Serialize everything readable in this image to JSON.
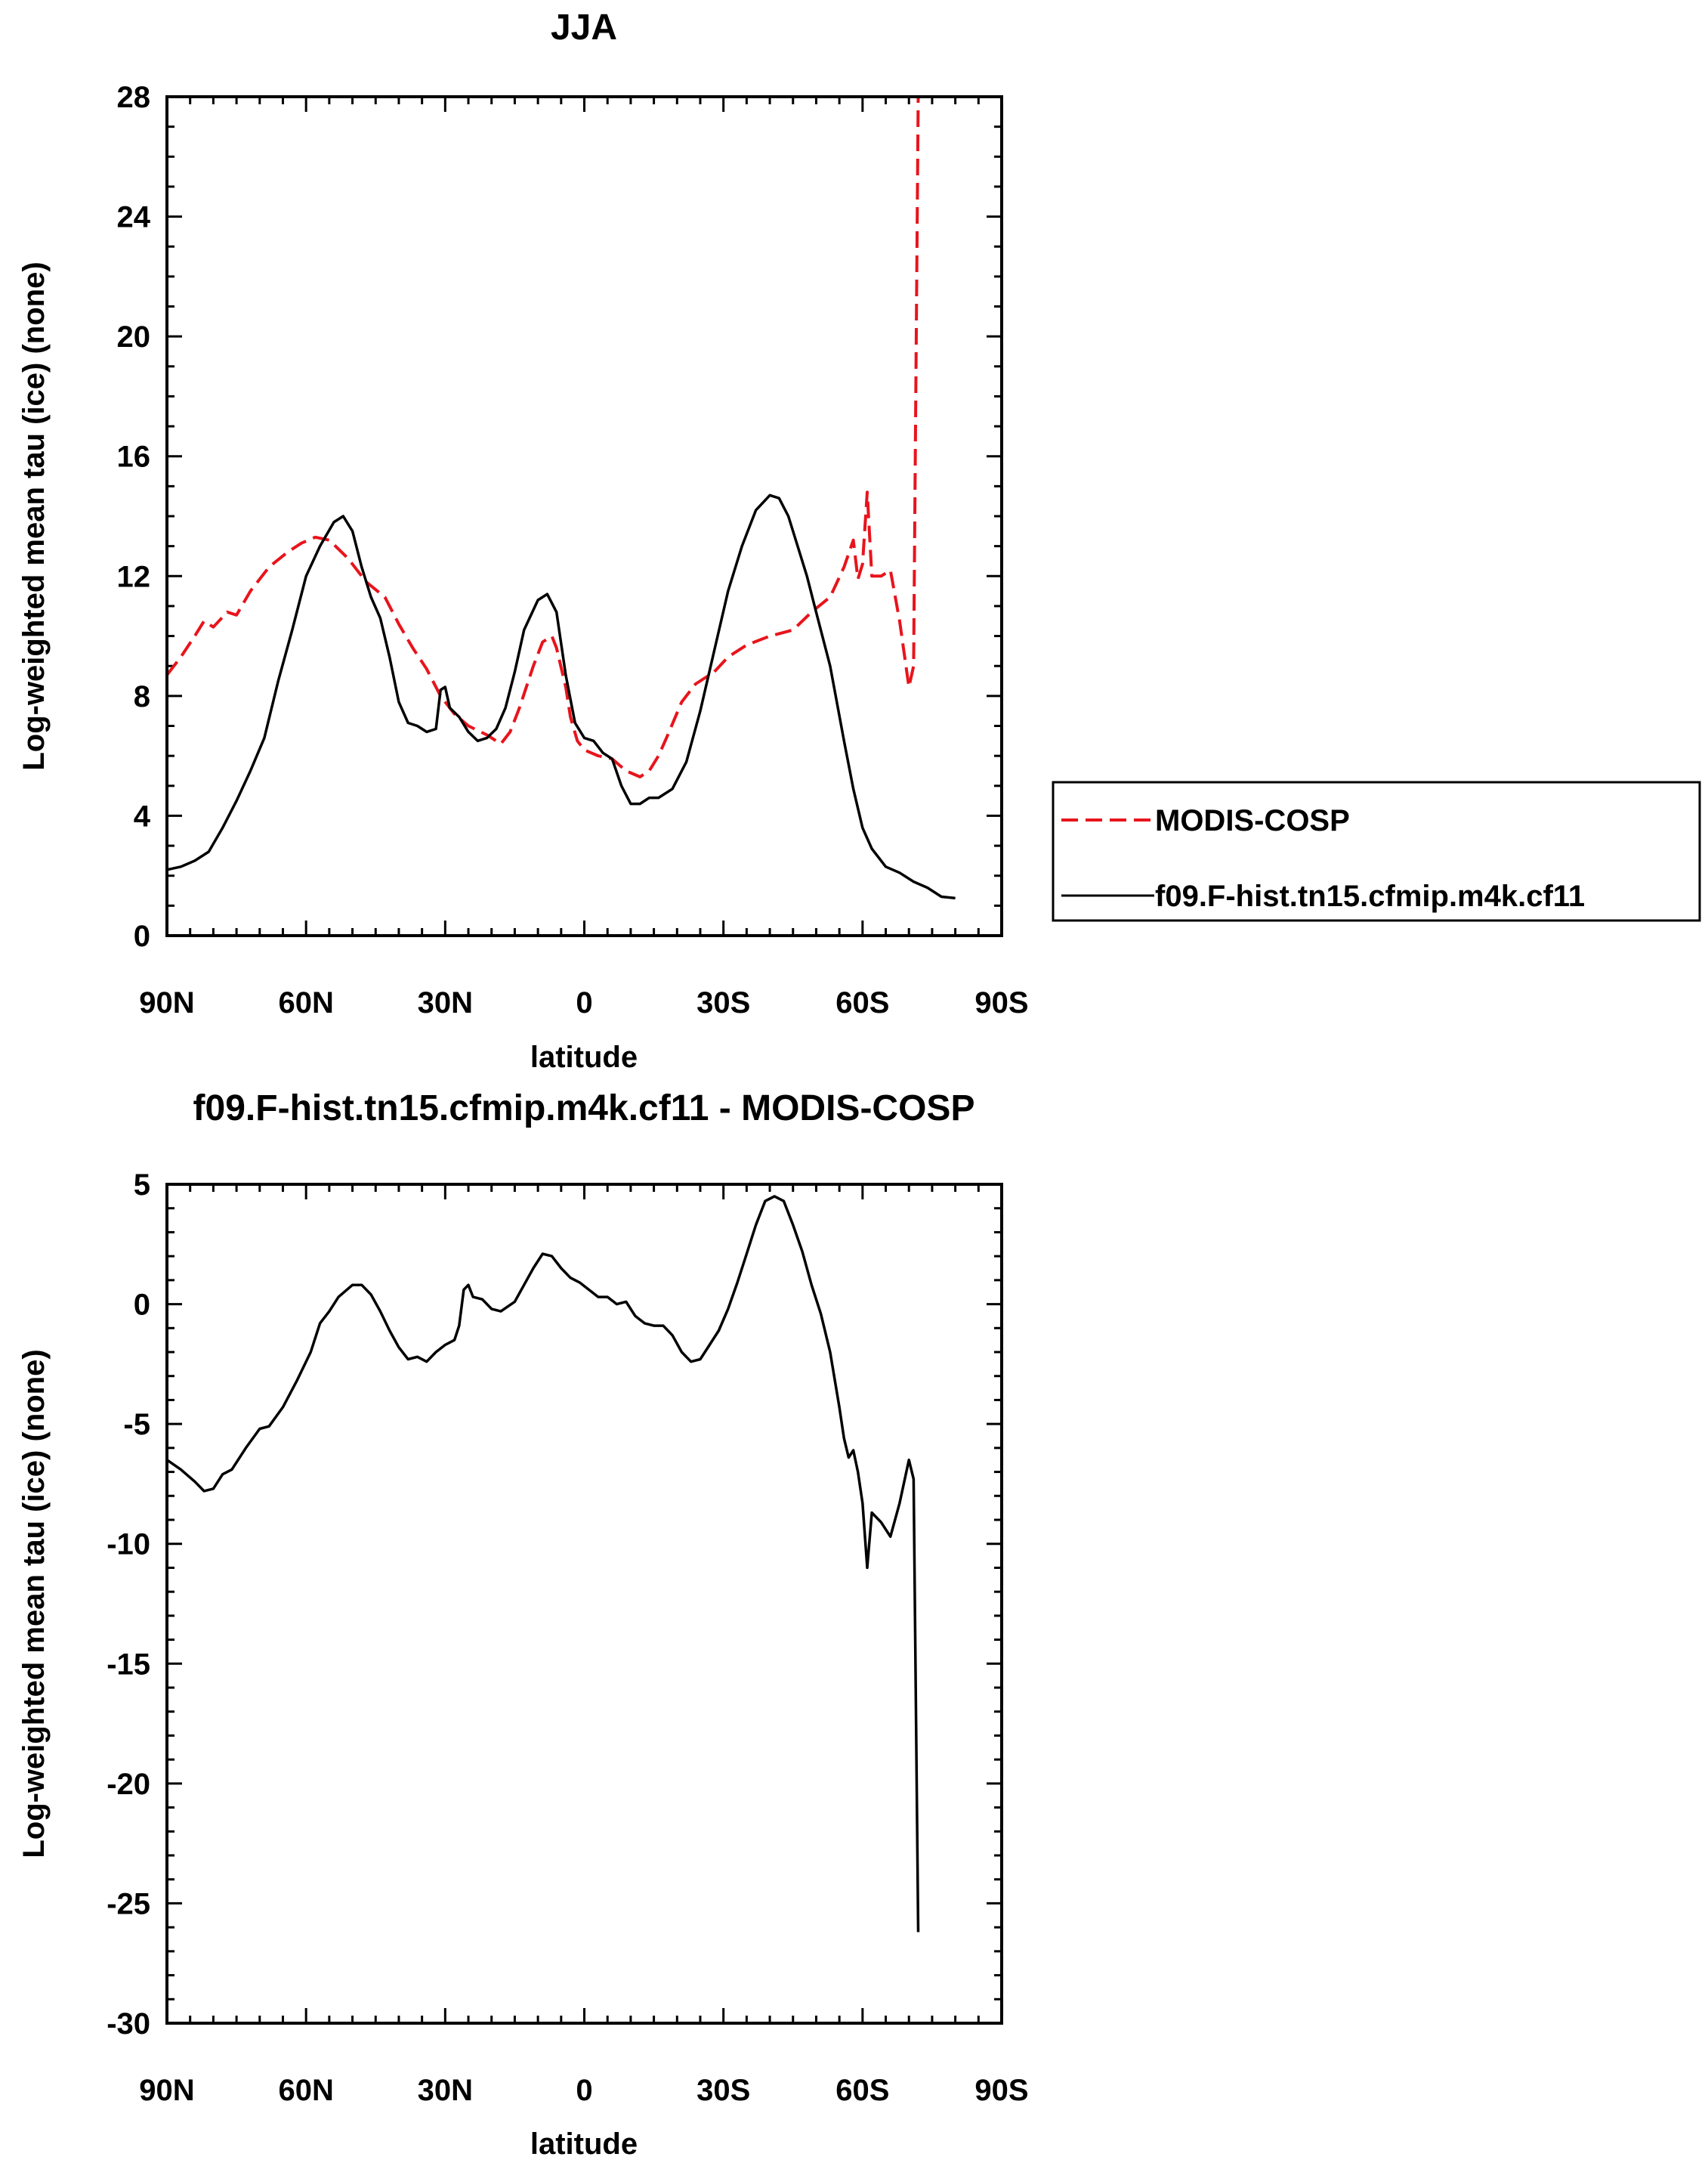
{
  "chart_data": [
    {
      "type": "line",
      "title": "JJA",
      "xlabel": "latitude",
      "ylabel": "Log-weighted mean tau (ice) (none)",
      "xlim": [
        90,
        -90
      ],
      "ylim": [
        0,
        28
      ],
      "xticks": [
        {
          "value": 90,
          "label": "90N"
        },
        {
          "value": 60,
          "label": "60N"
        },
        {
          "value": 30,
          "label": "30N"
        },
        {
          "value": 0,
          "label": "0"
        },
        {
          "value": -30,
          "label": "30S"
        },
        {
          "value": -60,
          "label": "60S"
        },
        {
          "value": -90,
          "label": "90S"
        }
      ],
      "yticks": [
        0,
        4,
        8,
        12,
        16,
        20,
        24,
        28
      ],
      "legend": "right",
      "series": [
        {
          "name": "MODIS-COSP",
          "color": "#e8141c",
          "dash": "dashed",
          "points": [
            [
              90,
              8.7
            ],
            [
              87,
              9.3
            ],
            [
              84,
              10.0
            ],
            [
              82,
              10.5
            ],
            [
              80,
              10.3
            ],
            [
              77,
              10.8
            ],
            [
              75,
              10.7
            ],
            [
              72,
              11.5
            ],
            [
              68,
              12.3
            ],
            [
              64,
              12.8
            ],
            [
              61,
              13.1
            ],
            [
              58,
              13.3
            ],
            [
              55,
              13.2
            ],
            [
              51,
              12.6
            ],
            [
              47,
              11.8
            ],
            [
              43,
              11.3
            ],
            [
              40,
              10.4
            ],
            [
              37,
              9.6
            ],
            [
              34,
              8.9
            ],
            [
              31,
              8.0
            ],
            [
              28,
              7.4
            ],
            [
              25,
              7.0
            ],
            [
              21,
              6.7
            ],
            [
              18,
              6.4
            ],
            [
              16,
              6.8
            ],
            [
              14,
              7.6
            ],
            [
              11,
              9.0
            ],
            [
              9,
              9.8
            ],
            [
              7,
              10.0
            ],
            [
              6,
              9.6
            ],
            [
              4,
              8.3
            ],
            [
              3,
              7.3
            ],
            [
              1.5,
              6.5
            ],
            [
              0,
              6.2
            ],
            [
              -3,
              6.0
            ],
            [
              -6,
              5.9
            ],
            [
              -9,
              5.5
            ],
            [
              -12,
              5.3
            ],
            [
              -14,
              5.5
            ],
            [
              -16,
              6.0
            ],
            [
              -18,
              6.7
            ],
            [
              -21,
              7.8
            ],
            [
              -24,
              8.4
            ],
            [
              -28,
              8.8
            ],
            [
              -31,
              9.3
            ],
            [
              -35,
              9.7
            ],
            [
              -40,
              10.0
            ],
            [
              -45,
              10.2
            ],
            [
              -49,
              10.8
            ],
            [
              -53,
              11.3
            ],
            [
              -56,
              12.3
            ],
            [
              -58,
              13.2
            ],
            [
              -59,
              11.9
            ],
            [
              -60,
              12.4
            ],
            [
              -61,
              14.8
            ],
            [
              -62,
              12.0
            ],
            [
              -64,
              12.0
            ],
            [
              -66,
              12.2
            ],
            [
              -68,
              10.5
            ],
            [
              -70,
              8.3
            ],
            [
              -71,
              9.0
            ],
            [
              -72,
              28
            ]
          ]
        },
        {
          "name": "f09.F-hist.tn15.cfmip.m4k.cf11",
          "color": "#000000",
          "dash": "solid",
          "points": [
            [
              90,
              2.2
            ],
            [
              87,
              2.3
            ],
            [
              84,
              2.5
            ],
            [
              81,
              2.8
            ],
            [
              78,
              3.6
            ],
            [
              75,
              4.5
            ],
            [
              72,
              5.5
            ],
            [
              69,
              6.6
            ],
            [
              66,
              8.5
            ],
            [
              63,
              10.2
            ],
            [
              60,
              12.0
            ],
            [
              57,
              13.0
            ],
            [
              54,
              13.8
            ],
            [
              52,
              14.0
            ],
            [
              50,
              13.5
            ],
            [
              48,
              12.3
            ],
            [
              46,
              11.3
            ],
            [
              44,
              10.6
            ],
            [
              42,
              9.3
            ],
            [
              40,
              7.8
            ],
            [
              38,
              7.1
            ],
            [
              36,
              7.0
            ],
            [
              34,
              6.8
            ],
            [
              32,
              6.9
            ],
            [
              31,
              8.2
            ],
            [
              30,
              8.3
            ],
            [
              29,
              7.6
            ],
            [
              27,
              7.3
            ],
            [
              25,
              6.8
            ],
            [
              23,
              6.5
            ],
            [
              21,
              6.6
            ],
            [
              19,
              6.9
            ],
            [
              17,
              7.6
            ],
            [
              15,
              8.8
            ],
            [
              13,
              10.2
            ],
            [
              10,
              11.2
            ],
            [
              8,
              11.4
            ],
            [
              6,
              10.8
            ],
            [
              4,
              8.7
            ],
            [
              2,
              7.1
            ],
            [
              0,
              6.6
            ],
            [
              -2,
              6.5
            ],
            [
              -4,
              6.1
            ],
            [
              -6,
              5.9
            ],
            [
              -8,
              5.0
            ],
            [
              -10,
              4.4
            ],
            [
              -12,
              4.4
            ],
            [
              -14,
              4.6
            ],
            [
              -16,
              4.6
            ],
            [
              -19,
              4.9
            ],
            [
              -22,
              5.8
            ],
            [
              -25,
              7.5
            ],
            [
              -28,
              9.5
            ],
            [
              -31,
              11.5
            ],
            [
              -34,
              13.0
            ],
            [
              -37,
              14.2
            ],
            [
              -40,
              14.7
            ],
            [
              -42,
              14.6
            ],
            [
              -44,
              14.0
            ],
            [
              -46,
              13.0
            ],
            [
              -48,
              12.0
            ],
            [
              -50,
              10.8
            ],
            [
              -53,
              9.0
            ],
            [
              -56,
              6.5
            ],
            [
              -58,
              4.9
            ],
            [
              -60,
              3.6
            ],
            [
              -62,
              2.9
            ],
            [
              -65,
              2.3
            ],
            [
              -68,
              2.1
            ],
            [
              -71,
              1.8
            ],
            [
              -74,
              1.6
            ],
            [
              -77,
              1.3
            ],
            [
              -80,
              1.25
            ]
          ]
        }
      ]
    },
    {
      "type": "line",
      "title": "f09.F-hist.tn15.cfmip.m4k.cf11 - MODIS-COSP",
      "xlabel": "latitude",
      "ylabel": "Log-weighted mean tau (ice) (none)",
      "xlim": [
        90,
        -90
      ],
      "ylim": [
        -30,
        5
      ],
      "xticks": [
        {
          "value": 90,
          "label": "90N"
        },
        {
          "value": 60,
          "label": "60N"
        },
        {
          "value": 30,
          "label": "30N"
        },
        {
          "value": 0,
          "label": "0"
        },
        {
          "value": -30,
          "label": "30S"
        },
        {
          "value": -60,
          "label": "60S"
        },
        {
          "value": -90,
          "label": "90S"
        }
      ],
      "yticks": [
        5,
        0,
        -5,
        -10,
        -15,
        -20,
        -25,
        -30
      ],
      "series": [
        {
          "color": "#000000",
          "dash": "solid",
          "points": [
            [
              90,
              -6.5
            ],
            [
              87,
              -6.9
            ],
            [
              84,
              -7.4
            ],
            [
              82,
              -7.8
            ],
            [
              80,
              -7.7
            ],
            [
              78,
              -7.1
            ],
            [
              76,
              -6.9
            ],
            [
              73,
              -6.0
            ],
            [
              70,
              -5.2
            ],
            [
              68,
              -5.1
            ],
            [
              65,
              -4.3
            ],
            [
              62,
              -3.2
            ],
            [
              59,
              -2.0
            ],
            [
              57,
              -0.8
            ],
            [
              55,
              -0.3
            ],
            [
              53,
              0.3
            ],
            [
              50,
              0.8
            ],
            [
              48,
              0.8
            ],
            [
              46,
              0.4
            ],
            [
              44,
              -0.3
            ],
            [
              42,
              -1.1
            ],
            [
              40,
              -1.8
            ],
            [
              38,
              -2.3
            ],
            [
              36,
              -2.2
            ],
            [
              34,
              -2.4
            ],
            [
              32,
              -2.0
            ],
            [
              30,
              -1.7
            ],
            [
              28,
              -1.5
            ],
            [
              27,
              -0.9
            ],
            [
              26,
              0.6
            ],
            [
              25,
              0.8
            ],
            [
              24,
              0.3
            ],
            [
              22,
              0.2
            ],
            [
              20,
              -0.2
            ],
            [
              18,
              -0.3
            ],
            [
              15,
              0.1
            ],
            [
              13,
              0.8
            ],
            [
              11,
              1.5
            ],
            [
              9,
              2.1
            ],
            [
              7,
              2.0
            ],
            [
              5,
              1.5
            ],
            [
              3,
              1.1
            ],
            [
              1,
              0.9
            ],
            [
              -1,
              0.6
            ],
            [
              -3,
              0.3
            ],
            [
              -5,
              0.3
            ],
            [
              -7,
              0.0
            ],
            [
              -9,
              0.1
            ],
            [
              -11,
              -0.5
            ],
            [
              -13,
              -0.8
            ],
            [
              -15,
              -0.9
            ],
            [
              -17,
              -0.9
            ],
            [
              -19,
              -1.3
            ],
            [
              -21,
              -2.0
            ],
            [
              -23,
              -2.4
            ],
            [
              -25,
              -2.3
            ],
            [
              -27,
              -1.7
            ],
            [
              -29,
              -1.1
            ],
            [
              -31,
              -0.2
            ],
            [
              -33,
              0.9
            ],
            [
              -35,
              2.1
            ],
            [
              -37,
              3.3
            ],
            [
              -39,
              4.3
            ],
            [
              -41,
              4.5
            ],
            [
              -43,
              4.3
            ],
            [
              -45,
              3.3
            ],
            [
              -47,
              2.2
            ],
            [
              -49,
              0.8
            ],
            [
              -51,
              -0.4
            ],
            [
              -53,
              -2.0
            ],
            [
              -55,
              -4.3
            ],
            [
              -56,
              -5.6
            ],
            [
              -57,
              -6.4
            ],
            [
              -58,
              -6.1
            ],
            [
              -59,
              -7.0
            ],
            [
              -60,
              -8.3
            ],
            [
              -61,
              -11.0
            ],
            [
              -62,
              -8.7
            ],
            [
              -64,
              -9.1
            ],
            [
              -66,
              -9.7
            ],
            [
              -68,
              -8.3
            ],
            [
              -70,
              -6.5
            ],
            [
              -71,
              -7.3
            ],
            [
              -72,
              -26.2
            ]
          ]
        }
      ]
    }
  ]
}
